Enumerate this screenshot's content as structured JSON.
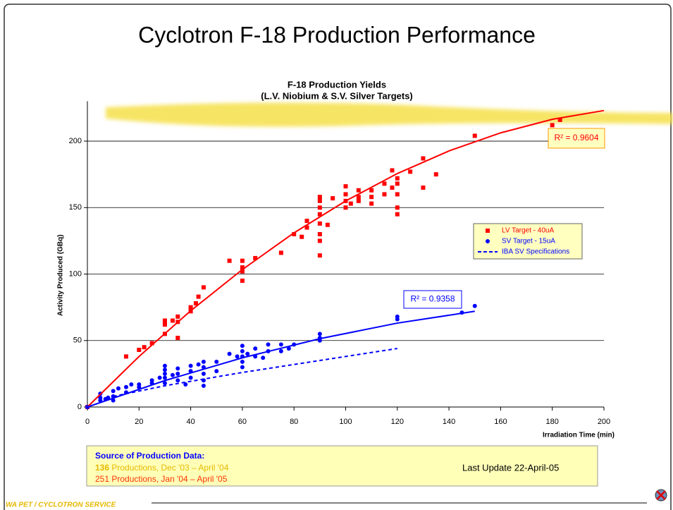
{
  "slide": {
    "title": "Cyclotron F-18 Production Performance",
    "footer": "WA PET / CYCLOTRON SERVICE",
    "source": {
      "heading": "Source of Production Data:",
      "line1_count": "136",
      "line1_text": " Productions,  Dec '03 – April '04",
      "line2": "251 Productions,  Jan '04 – April '05",
      "update": "Last Update 22-April-05"
    }
  },
  "chart_data": {
    "type": "scatter",
    "title": "F-18 Production Yields",
    "subtitle": "(L.V. Niobium & S.V. Silver Targets)",
    "x_label": "Irradiation Time (min)",
    "y_label": "Activity Produced (GBq)",
    "xlim": [
      0,
      200
    ],
    "ylim": [
      0,
      230
    ],
    "xticks": [
      0,
      20,
      40,
      60,
      80,
      100,
      120,
      140,
      160,
      180,
      200
    ],
    "yticks": [
      0,
      50,
      100,
      150,
      200
    ],
    "grid": true,
    "legend": "right",
    "series": [
      {
        "name": "LV Target - 40uA",
        "color": "#ff0000",
        "marker": "square",
        "x": [
          0,
          15,
          20,
          22,
          25,
          30,
          30,
          30,
          30,
          33,
          35,
          35,
          35,
          40,
          40,
          42,
          43,
          45,
          55,
          60,
          60,
          60,
          60,
          65,
          75,
          80,
          83,
          85,
          85,
          90,
          90,
          90,
          90,
          90,
          90,
          90,
          90,
          93,
          95,
          100,
          100,
          100,
          100,
          102,
          105,
          105,
          105,
          110,
          110,
          110,
          115,
          115,
          118,
          118,
          120,
          120,
          120,
          120,
          120,
          125,
          130,
          130,
          135,
          150,
          180,
          183
        ],
        "values": [
          0,
          38,
          43,
          45,
          48,
          55,
          62,
          64,
          65,
          65,
          68,
          64,
          52,
          72,
          75,
          78,
          83,
          90,
          110,
          110,
          105,
          102,
          95,
          112,
          116,
          130,
          128,
          135,
          140,
          158,
          155,
          150,
          145,
          138,
          130,
          125,
          114,
          137,
          157,
          166,
          160,
          155,
          150,
          153,
          163,
          158,
          155,
          163,
          158,
          153,
          168,
          160,
          178,
          165,
          172,
          168,
          160,
          150,
          145,
          177,
          187,
          165,
          175,
          204,
          212,
          216
        ]
      },
      {
        "name": "SV Target - 15uA",
        "color": "#0000ff",
        "marker": "circle",
        "x": [
          0,
          5,
          5,
          5,
          7,
          8,
          10,
          10,
          10,
          12,
          15,
          15,
          17,
          20,
          20,
          25,
          25,
          28,
          30,
          30,
          30,
          30,
          30,
          33,
          35,
          35,
          35,
          38,
          40,
          40,
          40,
          43,
          45,
          45,
          45,
          45,
          45,
          50,
          50,
          55,
          58,
          60,
          60,
          60,
          60,
          60,
          62,
          65,
          65,
          68,
          70,
          70,
          75,
          75,
          78,
          80,
          90,
          90,
          90,
          120,
          120,
          145,
          150
        ],
        "values": [
          0,
          5,
          7,
          10,
          6,
          7,
          5,
          8,
          12,
          14,
          11,
          15,
          17,
          15,
          17,
          18,
          20,
          22,
          18,
          22,
          25,
          28,
          31,
          24,
          20,
          25,
          29,
          17,
          22,
          27,
          31,
          32,
          16,
          20,
          25,
          30,
          34,
          27,
          34,
          40,
          38,
          30,
          34,
          38,
          42,
          46,
          40,
          38,
          44,
          37,
          42,
          47,
          42,
          47,
          44,
          47,
          50,
          52,
          55,
          66,
          68,
          71,
          76
        ]
      },
      {
        "name": "IBA SV Specifications",
        "color": "#0000ff",
        "marker": "dash",
        "x": [
          10,
          30,
          60,
          90,
          120
        ],
        "values": [
          8,
          16,
          26,
          35,
          44
        ]
      }
    ],
    "trendlines": [
      {
        "color": "#ff0000",
        "label": "R² = 0.9604",
        "x": [
          0,
          20,
          40,
          60,
          80,
          100,
          120,
          140,
          160,
          180,
          200
        ],
        "values": [
          0,
          38,
          72.4,
          103.4,
          131,
          155,
          175.6,
          192.6,
          206.2,
          216.4,
          223
        ]
      },
      {
        "color": "#0000ff",
        "label": "R² = 0.9358",
        "x": [
          0,
          30,
          60,
          90,
          120,
          150
        ],
        "values": [
          0,
          19.9,
          37,
          51.4,
          63.1,
          72
        ]
      }
    ]
  }
}
